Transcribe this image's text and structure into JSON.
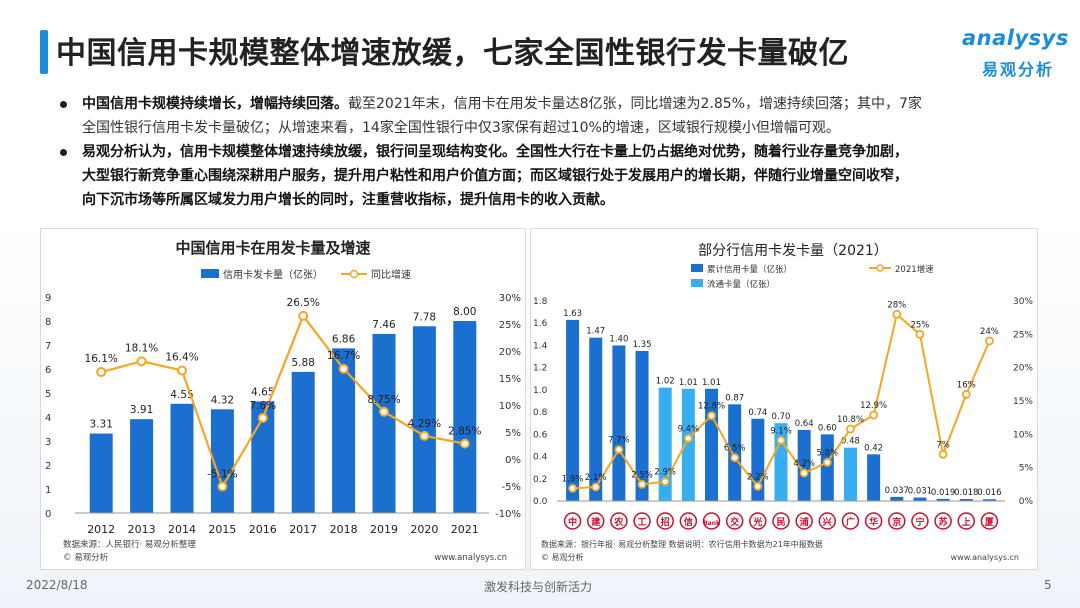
{
  "header": {
    "title": "中国信用卡规模整体增速放缓，七家全国性银行发卡量破亿",
    "logo_word": "analysys",
    "logo_cn": "易观分析"
  },
  "bullets": [
    {
      "lead": "中国信用卡规模持续增长，增幅持续回落。",
      "line1": "截至2021年末，信用卡在用发卡量达8亿张，同比增速为2.85%，增速持续回落；其中，7家",
      "line2": "全国性银行信用卡发卡量破亿；从增速来看，14家全国性银行中仅3家保有超过10%的增速，区域银行规模小但增幅可观。"
    },
    {
      "lead": "",
      "line1": "易观分析认为，信用卡规模整体增速持续放缓，银行间呈现结构变化。全国性大行在卡量上仍占据绝对优势，随着行业存量竞争加剧，",
      "line2": "大型银行新竞争重心围绕深耕用户服务，提升用户粘性和用户价值方面；而区域银行处于发展用户的增长期，伴随行业增量空间收窄，",
      "line3": "向下沉市场等所属区域发力用户增长的同时，注重营收指标，提升信用卡的收入贡献。"
    }
  ],
  "chart_data": [
    {
      "type": "bar+line",
      "title": "中国信用卡在用发卡量及增速",
      "legend": [
        "信用卡发卡量（亿张）",
        "同比增速"
      ],
      "categories": [
        "2012",
        "2013",
        "2014",
        "2015",
        "2016",
        "2017",
        "2018",
        "2019",
        "2020",
        "2021"
      ],
      "bars": [
        3.31,
        3.91,
        4.55,
        4.32,
        4.65,
        5.88,
        6.86,
        7.46,
        7.78,
        8.0
      ],
      "bar_labels": [
        "3.31",
        "3.91",
        "4.55",
        "4.32",
        "4.65",
        "5.88",
        "6.86",
        "7.46",
        "7.78",
        "8.00"
      ],
      "line": [
        16.1,
        18.1,
        16.4,
        -5.1,
        7.6,
        26.5,
        16.7,
        8.75,
        4.29,
        2.85
      ],
      "line_labels": [
        "16.1%",
        "18.1%",
        "16.4%",
        "-5.1%",
        "7.6%",
        "26.5%",
        "16.7%",
        "8.75%",
        "4.29%",
        "2.85%"
      ],
      "y_left": [
        0,
        9
      ],
      "y_left_ticks": [
        "0",
        "1",
        "2",
        "3",
        "4",
        "5",
        "6",
        "7",
        "8",
        "9"
      ],
      "y_right": [
        -10,
        30
      ],
      "y_right_ticks": [
        "-10%",
        "-5%",
        "0%",
        "5%",
        "10%",
        "15%",
        "20%",
        "25%",
        "30%"
      ],
      "source": "数据来源：人民银行· 易观分析整理",
      "copyright": "© 易观分析",
      "site": "www.analysys.cn"
    },
    {
      "type": "bar+line",
      "title": "部分行信用卡发卡量（2021）",
      "legend": [
        "累计信用卡量（亿张）",
        "2021增速",
        "流通卡量（亿张）"
      ],
      "banks": [
        "中国银行",
        "建设银行",
        "农业银行",
        "工商银行",
        "招商银行",
        "中信银行",
        "平安银行",
        "交通银行",
        "光大银行",
        "民生银行",
        "浦发银行",
        "兴业银行",
        "广发银行",
        "华夏银行",
        "北京银行",
        "宁波银行",
        "江苏银行",
        "上海银行",
        "厦门银行"
      ],
      "values": [
        1.63,
        1.47,
        1.4,
        1.35,
        1.02,
        1.01,
        1.01,
        0.87,
        0.74,
        0.7,
        0.64,
        0.6,
        0.48,
        0.42,
        0.037,
        0.031,
        0.019,
        0.018,
        0.016
      ],
      "value_labels": [
        "1.63",
        "1.47",
        "1.40",
        "1.35",
        "1.02",
        "1.01",
        "1.01",
        "0.87",
        "0.74",
        "0.70",
        "0.64",
        "0.60",
        "0.48",
        "0.42",
        "0.037",
        "0.031",
        "0.019",
        "0.018",
        "0.016"
      ],
      "circulating": [
        false,
        false,
        false,
        false,
        true,
        true,
        false,
        false,
        false,
        true,
        false,
        false,
        true,
        false,
        false,
        false,
        false,
        false,
        false
      ],
      "growth": [
        1.9,
        2.1,
        7.7,
        2.5,
        2.9,
        9.4,
        12.8,
        6.5,
        2.2,
        9.1,
        4.2,
        5.8,
        10.8,
        12.9,
        28,
        25,
        7,
        16,
        24
      ],
      "growth_labels": [
        "1.9%",
        "2.1%",
        "7.7%",
        "2.5%",
        "2.9%",
        "9.4%",
        "12.8%",
        "6.5%",
        "2.2%",
        "9.1%",
        "4.2%",
        "5.8%",
        "10.8%",
        "12.9%",
        "28%",
        "25%",
        "7%",
        "16%",
        "24%"
      ],
      "bank_marks": [
        "中",
        "建",
        "农",
        "工",
        "招",
        "信",
        "Bank",
        "交",
        "光",
        "民",
        "浦",
        "兴",
        "广",
        "华",
        "京",
        "宁",
        "苏",
        "上",
        "厦"
      ],
      "y_left": [
        0,
        1.8
      ],
      "y_left_ticks": [
        "0.0",
        "0.2",
        "0.4",
        "0.6",
        "0.8",
        "1.0",
        "1.2",
        "1.4",
        "1.6",
        "1.8"
      ],
      "y_right": [
        0,
        30
      ],
      "y_right_ticks": [
        "0%",
        "5%",
        "10%",
        "15%",
        "20%",
        "25%",
        "30%"
      ],
      "source": "数据来源：银行年报· 易观分析整理  数据说明：农行信用卡数据为21年中报数据",
      "copyright": "© 易观分析",
      "site": "www.analysys.cn"
    }
  ],
  "colors": {
    "accent": "#1a8cdd",
    "bar_dark": "#1b6fcf",
    "bar_light": "#36aef0",
    "line": "#f5a623",
    "line_marker": "#ffffff"
  },
  "footer": {
    "date": "2022/8/18",
    "slogan": "激发科技与创新活力",
    "page": "5"
  }
}
